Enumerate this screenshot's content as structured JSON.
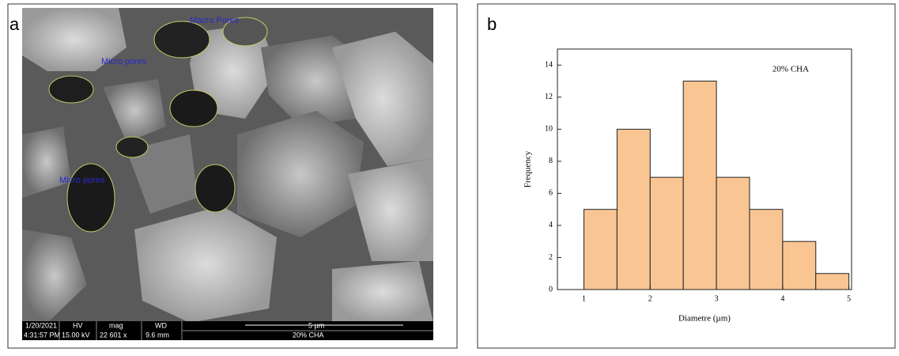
{
  "figure": {
    "panel_labels": [
      "a",
      "b"
    ],
    "image_panel": {
      "annotations": [
        "Macro Pores",
        "Micro pores",
        "Micro pores"
      ],
      "info_bar": {
        "date": "1/20/2021",
        "time": "4:31:57 PM",
        "hv_label": "HV",
        "hv": "15.00 kV",
        "mag_label": "mag",
        "mag": "22 601 x",
        "wd_label": "WD",
        "wd": "9.6 mm",
        "scale": "5 µm",
        "sample": "20% CHA"
      }
    }
  },
  "chart_data": {
    "type": "histogram",
    "title": "20% CHA",
    "x_label": "Diametre (µm)",
    "y_label": "Frequency",
    "bins": [
      1,
      1.5,
      2,
      2.5,
      3,
      3.5,
      4,
      4.5,
      5
    ],
    "values": [
      5,
      10,
      7,
      13,
      7,
      5,
      3,
      1
    ],
    "color": "#f9c593",
    "xlim": [
      0.6,
      5.04
    ],
    "ylim": [
      0,
      15
    ],
    "xticks": [
      1,
      2,
      3,
      4,
      5
    ],
    "yticks": [
      0,
      2,
      4,
      6,
      8,
      10,
      12,
      14
    ]
  }
}
